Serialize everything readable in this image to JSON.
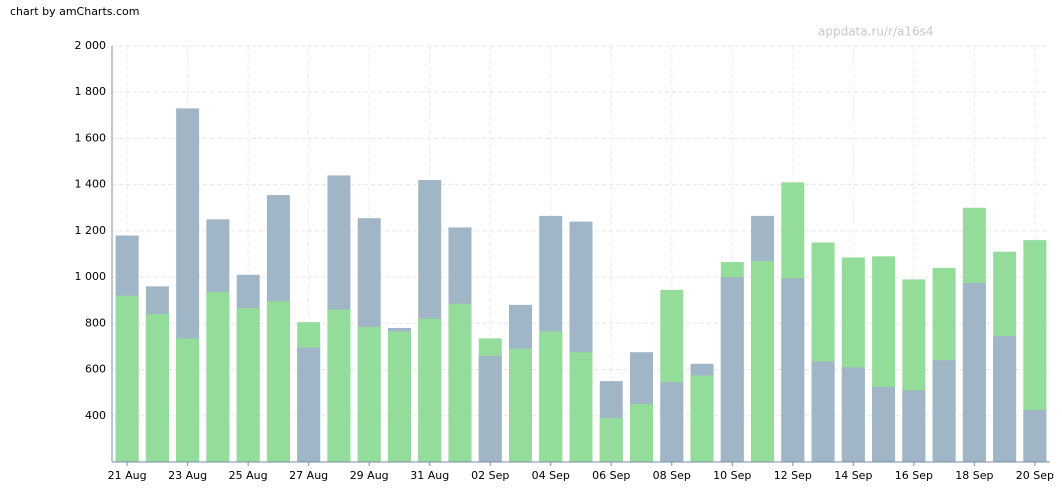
{
  "chart_data": {
    "type": "bar",
    "credit": "chart by amCharts.com",
    "watermark": "appdata.ru/r/a16s4",
    "categories": [
      "21 Aug",
      null,
      "23 Aug",
      null,
      "25 Aug",
      null,
      "27 Aug",
      null,
      "29 Aug",
      null,
      "31 Aug",
      null,
      "02 Sep",
      null,
      "04 Sep",
      null,
      "06 Sep",
      null,
      "08 Sep",
      null,
      "10 Sep",
      null,
      "12 Sep",
      null,
      "14 Sep",
      null,
      "16 Sep",
      null,
      "18 Sep",
      null,
      "20 Sep"
    ],
    "series": [
      {
        "color": "#a0b6c6",
        "values": [
          1180,
          960,
          1730,
          1250,
          1010,
          1355,
          695,
          1440,
          1255,
          780,
          1420,
          1215,
          660,
          880,
          1265,
          1240,
          550,
          675,
          545,
          625,
          1000,
          1265,
          995,
          635,
          610,
          525,
          510,
          640,
          975,
          745,
          425
        ]
      },
      {
        "color": "#94dc9a",
        "values": [
          920,
          840,
          735,
          935,
          865,
          895,
          805,
          860,
          785,
          765,
          820,
          885,
          735,
          690,
          765,
          675,
          390,
          450,
          945,
          575,
          1065,
          1070,
          1410,
          1150,
          1085,
          1090,
          990,
          1040,
          1300,
          1110,
          1160
        ]
      }
    ],
    "ylim": [
      200,
      2000
    ],
    "yticks": [
      400,
      600,
      800,
      {
        "value": 1000,
        "label": "1 000"
      },
      {
        "value": 1200,
        "label": "1 200"
      },
      {
        "value": 1400,
        "label": "1 400"
      },
      {
        "value": 1600,
        "label": "1 600"
      },
      {
        "value": 1800,
        "label": "1 800"
      },
      {
        "value": 2000,
        "label": "2 000"
      }
    ],
    "grid": true
  }
}
